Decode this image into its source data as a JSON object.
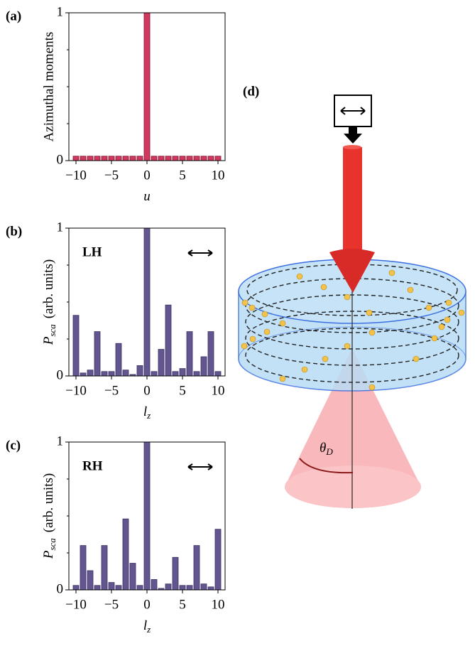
{
  "chart_data": [
    {
      "type": "bar",
      "panel_label": "(a)",
      "ylabel": "Azimuthal moments",
      "xlabel": {
        "symbol": "u"
      },
      "x": [
        -10,
        -9,
        -8,
        -7,
        -6,
        -5,
        -4,
        -3,
        -2,
        -1,
        0,
        1,
        2,
        3,
        4,
        5,
        6,
        7,
        8,
        9,
        10
      ],
      "values": [
        0.03,
        0.03,
        0.03,
        0.03,
        0.03,
        0.03,
        0.03,
        0.03,
        0.03,
        0.03,
        1,
        0.03,
        0.03,
        0.03,
        0.03,
        0.03,
        0.03,
        0.03,
        0.03,
        0.03,
        0.03
      ],
      "color": "#d0385e",
      "edgecolor": "#7a1530",
      "xlim": [
        -11,
        11
      ],
      "xticks": [
        {
          "value": -10,
          "label": "−10"
        },
        {
          "value": -5,
          "label": "−5"
        },
        0,
        5,
        10
      ],
      "ylim": [
        0,
        1
      ],
      "yticks": [
        0,
        1
      ],
      "minor_yticks": [
        0.25,
        0.5,
        0.75
      ]
    },
    {
      "type": "bar",
      "panel_label": "(b)",
      "annotation": "LH",
      "ylabel": {
        "symbol": "P",
        "subscript": "sca",
        "text": "(arb. units)"
      },
      "xlabel": {
        "symbol": "l",
        "subscript": "z"
      },
      "x": [
        -10,
        -9,
        -8,
        -7,
        -6,
        -5,
        -4,
        -3,
        -2,
        -1,
        0,
        1,
        2,
        3,
        4,
        5,
        6,
        7,
        8,
        9,
        10
      ],
      "values": [
        0.41,
        0.02,
        0.04,
        0.3,
        0.03,
        0.03,
        0.22,
        0.04,
        0.01,
        0.07,
        1,
        0.03,
        0.18,
        0.48,
        0.03,
        0.05,
        0.3,
        0.03,
        0.13,
        0.3,
        0.03
      ],
      "color": "#635590",
      "edgecolor": "#3a2f60",
      "xlim": [
        -11,
        11
      ],
      "xticks": [
        {
          "value": -10,
          "label": "−10"
        },
        {
          "value": -5,
          "label": "−5"
        },
        0,
        5,
        10
      ],
      "ylim": [
        0,
        1
      ],
      "yticks": [
        0,
        1
      ],
      "minor_yticks": [
        0.25,
        0.5,
        0.75
      ]
    },
    {
      "type": "bar",
      "panel_label": "(c)",
      "annotation": "RH",
      "ylabel": {
        "symbol": "P",
        "subscript": "sca",
        "text": "(arb. units)"
      },
      "xlabel": {
        "symbol": "l",
        "subscript": "z"
      },
      "x": [
        -10,
        -9,
        -8,
        -7,
        -6,
        -5,
        -4,
        -3,
        -2,
        -1,
        0,
        1,
        2,
        3,
        4,
        5,
        6,
        7,
        8,
        9,
        10
      ],
      "values": [
        0.03,
        0.3,
        0.13,
        0.03,
        0.3,
        0.05,
        0.03,
        0.48,
        0.18,
        0.03,
        1,
        0.07,
        0.01,
        0.04,
        0.22,
        0.03,
        0.03,
        0.3,
        0.04,
        0.02,
        0.41
      ],
      "color": "#635590",
      "edgecolor": "#3a2f60",
      "xlim": [
        -11,
        11
      ],
      "xticks": [
        {
          "value": -10,
          "label": "−10"
        },
        {
          "value": -5,
          "label": "−5"
        },
        0,
        5,
        10
      ],
      "ylim": [
        0,
        1
      ],
      "yticks": [
        0,
        1
      ],
      "minor_yticks": [
        0.25,
        0.5,
        0.75
      ]
    }
  ],
  "diagram": {
    "panel_label": "(d)",
    "angle_label": {
      "symbol": "θ",
      "subscript": "D"
    }
  }
}
